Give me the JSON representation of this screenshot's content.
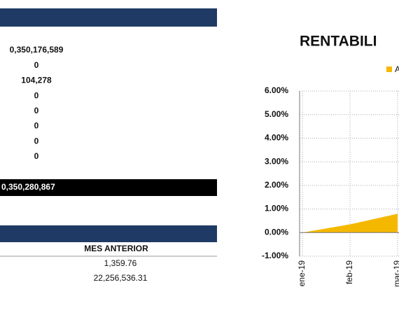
{
  "top_table": {
    "values": [
      "0,350,176,589",
      "0",
      "104,278",
      "0",
      "0",
      "0",
      "0",
      "0"
    ],
    "total": "0,350,280,867"
  },
  "bottom_table": {
    "header": "MES ANTERIOR",
    "rows": [
      "1,359.76",
      "22,256,536.31"
    ]
  },
  "chart_data": {
    "type": "area",
    "title": "RENTABILI",
    "categories": [
      "ene-19",
      "feb-19",
      "mar-19"
    ],
    "series": [
      {
        "name": "A",
        "color": "#f5b800",
        "values": [
          0,
          0.35,
          0.8
        ]
      }
    ],
    "ylim": [
      -1,
      6
    ],
    "yticks": [
      {
        "value": -1,
        "label": "-1.00%"
      },
      {
        "value": 0,
        "label": "0.00%"
      },
      {
        "value": 1,
        "label": "1.00%"
      },
      {
        "value": 2,
        "label": "2.00%"
      },
      {
        "value": 3,
        "label": "3.00%"
      },
      {
        "value": 4,
        "label": "4.00%"
      },
      {
        "value": 5,
        "label": "5.00%"
      },
      {
        "value": 6,
        "label": "6.00%"
      }
    ],
    "grid": true
  }
}
